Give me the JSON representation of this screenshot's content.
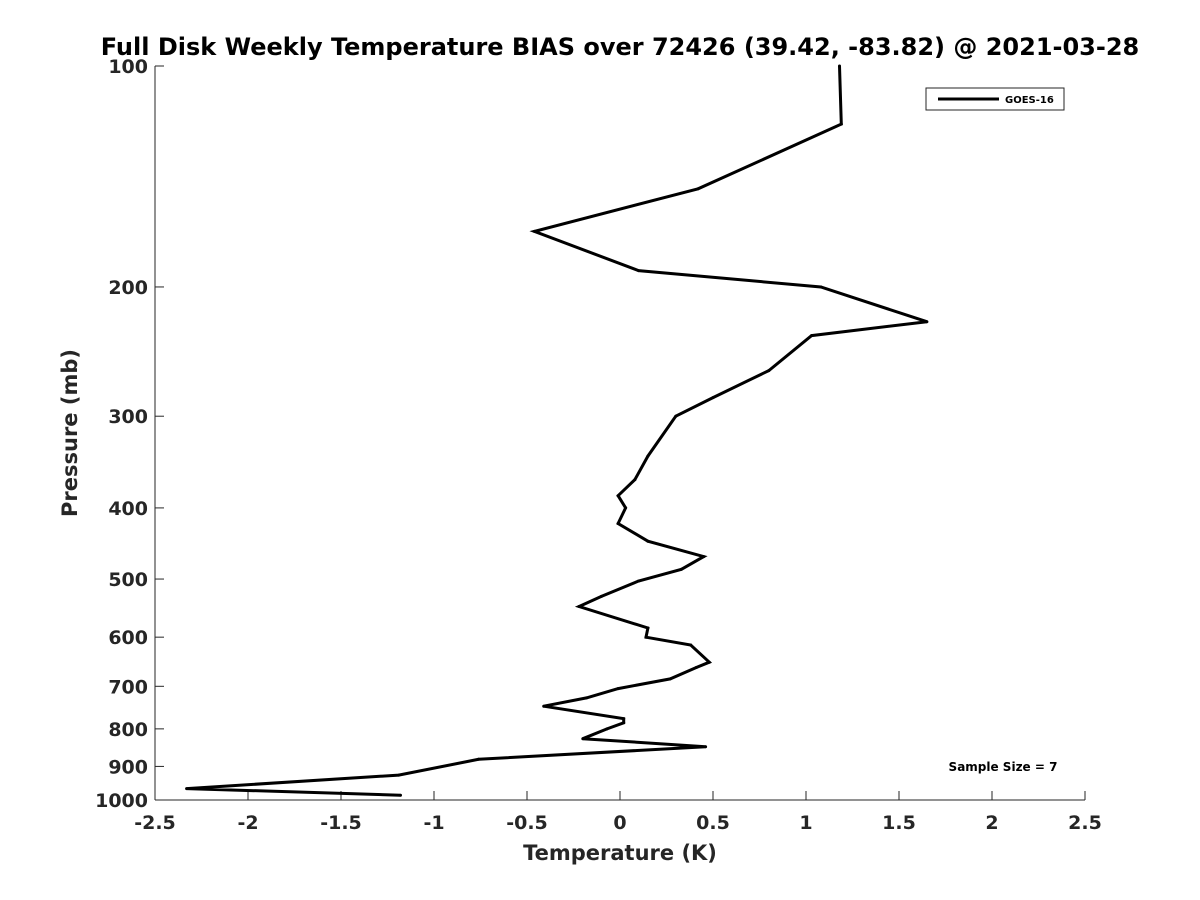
{
  "chart_data": {
    "type": "line",
    "title": "Full Disk Weekly Temperature BIAS over 72426 (39.42, -83.82) @ 2021-03-28",
    "xlabel": "Temperature (K)",
    "ylabel": "Pressure (mb)",
    "xlim": [
      -2.5,
      2.5
    ],
    "ylim": [
      100,
      1000
    ],
    "y_scale": "log",
    "y_reversed": true,
    "x_ticks": [
      "-2.5",
      "-2",
      "-1.5",
      "-1",
      "-0.5",
      "0",
      "0.5",
      "1",
      "1.5",
      "2",
      "2.5"
    ],
    "y_ticks": [
      "100",
      "200",
      "300",
      "400",
      "500",
      "600",
      "700",
      "800",
      "900",
      "1000"
    ],
    "grid": false,
    "legend_position": "top-right",
    "annotation": "Sample Size = 7",
    "series": [
      {
        "name": "GOES-16",
        "color": "#000000",
        "points": [
          [
            1.18,
            100
          ],
          [
            1.19,
            120
          ],
          [
            0.42,
            147
          ],
          [
            -0.46,
            168
          ],
          [
            0.1,
            190
          ],
          [
            1.08,
            200
          ],
          [
            1.65,
            223
          ],
          [
            1.03,
            233
          ],
          [
            0.8,
            260
          ],
          [
            0.5,
            283
          ],
          [
            0.3,
            300
          ],
          [
            0.15,
            340
          ],
          [
            0.08,
            366
          ],
          [
            -0.01,
            385
          ],
          [
            0.03,
            400
          ],
          [
            -0.01,
            420
          ],
          [
            0.15,
            444
          ],
          [
            0.45,
            466
          ],
          [
            0.33,
            485
          ],
          [
            0.1,
            503
          ],
          [
            -0.1,
            528
          ],
          [
            -0.22,
            545
          ],
          [
            0.15,
            583
          ],
          [
            0.14,
            600
          ],
          [
            0.38,
            615
          ],
          [
            0.48,
            649
          ],
          [
            0.41,
            660
          ],
          [
            0.27,
            684
          ],
          [
            -0.01,
            705
          ],
          [
            -0.18,
            726
          ],
          [
            -0.41,
            745
          ],
          [
            0.02,
            775
          ],
          [
            0.02,
            785
          ],
          [
            -0.07,
            800
          ],
          [
            -0.2,
            825
          ],
          [
            0.46,
            846
          ],
          [
            -0.76,
            880
          ],
          [
            -1.19,
            925
          ],
          [
            -2.33,
            965
          ],
          [
            -1.18,
            985
          ]
        ]
      }
    ]
  }
}
